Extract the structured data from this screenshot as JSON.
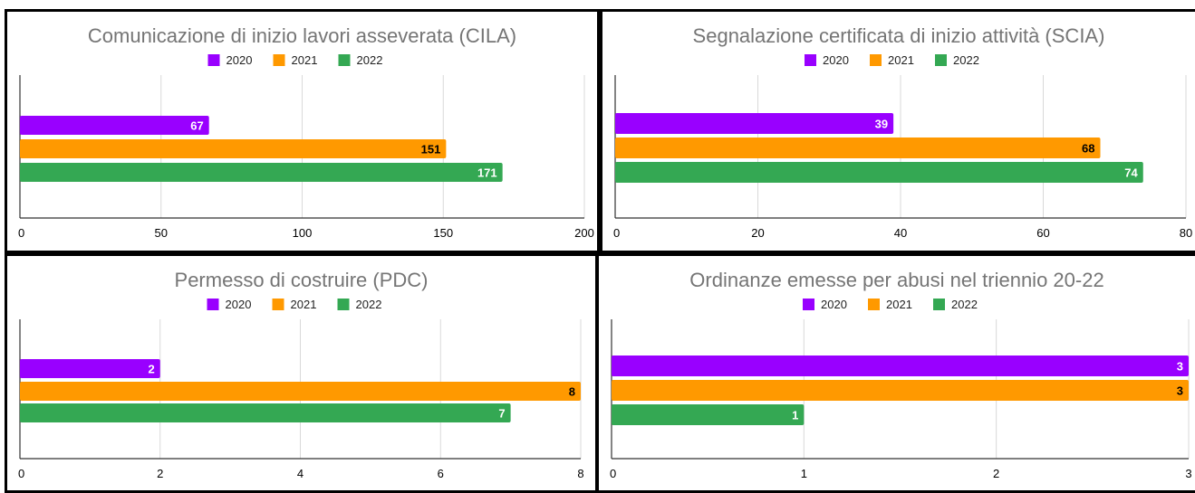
{
  "colors": {
    "2020": "#9900ff",
    "2021": "#ff9900",
    "2022": "#34a853"
  },
  "chart_data": [
    {
      "type": "bar",
      "orientation": "horizontal",
      "title": "Comunicazione di inizio lavori asseverata (CILA)",
      "legend": [
        "2020",
        "2021",
        "2022"
      ],
      "legend_position": "top",
      "series": [
        {
          "name": "2020",
          "values": [
            67
          ]
        },
        {
          "name": "2021",
          "values": [
            151
          ]
        },
        {
          "name": "2022",
          "values": [
            171
          ]
        }
      ],
      "xlim": [
        0,
        200
      ],
      "xticks": [
        "0",
        "50",
        "100",
        "150",
        "200"
      ],
      "grid": true
    },
    {
      "type": "bar",
      "orientation": "horizontal",
      "title": "Segnalazione certificata di inizio attività (SCIA)",
      "legend": [
        "2020",
        "2021",
        "2022"
      ],
      "legend_position": "top",
      "series": [
        {
          "name": "2020",
          "values": [
            39
          ]
        },
        {
          "name": "2021",
          "values": [
            68
          ]
        },
        {
          "name": "2022",
          "values": [
            74
          ]
        }
      ],
      "xlim": [
        0,
        80
      ],
      "xticks": [
        "0",
        "20",
        "40",
        "60",
        "80"
      ],
      "grid": true
    },
    {
      "type": "bar",
      "orientation": "horizontal",
      "title": "Permesso di costruire (PDC)",
      "legend": [
        "2020",
        "2021",
        "2022"
      ],
      "legend_position": "top",
      "series": [
        {
          "name": "2020",
          "values": [
            2
          ]
        },
        {
          "name": "2021",
          "values": [
            8
          ]
        },
        {
          "name": "2022",
          "values": [
            7
          ]
        }
      ],
      "xlim": [
        0,
        8
      ],
      "xticks": [
        "0",
        "2",
        "4",
        "6",
        "8"
      ],
      "grid": true
    },
    {
      "type": "bar",
      "orientation": "horizontal",
      "title": "Ordinanze emesse per abusi nel triennio 20-22",
      "legend": [
        "2020",
        "2021",
        "2022"
      ],
      "legend_position": "top",
      "series": [
        {
          "name": "2020",
          "values": [
            3
          ]
        },
        {
          "name": "2021",
          "values": [
            3
          ]
        },
        {
          "name": "2022",
          "values": [
            1
          ]
        }
      ],
      "xlim": [
        0,
        3
      ],
      "xticks": [
        "0",
        "1",
        "2",
        "3"
      ],
      "grid": true
    }
  ]
}
